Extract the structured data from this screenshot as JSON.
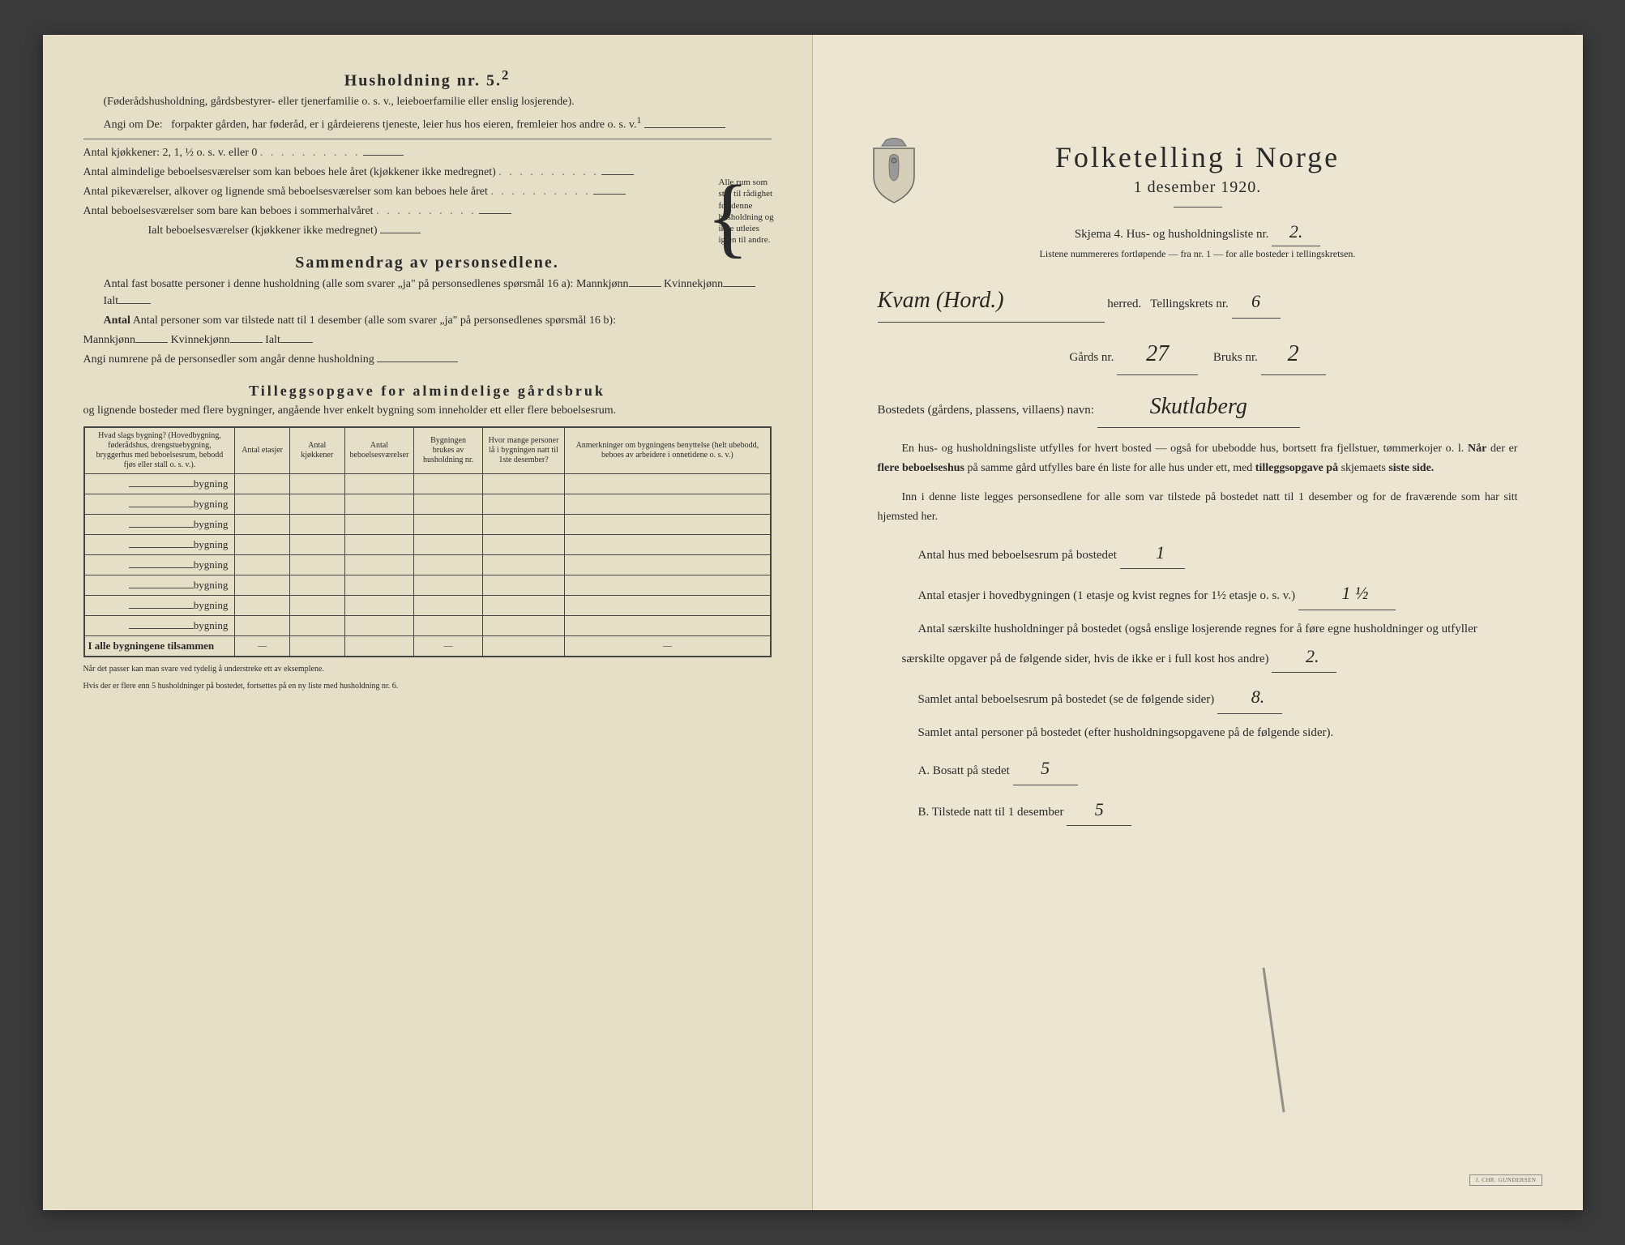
{
  "left_page": {
    "heading1": "Husholdning nr. 5.",
    "heading1_sup": "2",
    "para1": "(Føderådshusholdning, gårdsbestyrer- eller tjenerfamilie o. s. v., leieboerfamilie eller enslig losjerende).",
    "para2_prefix": "Angi om De:",
    "para2": "forpakter gården, har føderåd, er i gårdeierens tjeneste, leier hus hos eieren, fremleier hos andre o. s. v.",
    "para2_sup": "1",
    "kitchen_line": "Antal kjøkkener: 2, 1, ½ o. s. v. eller 0",
    "rooms1": "Antal almindelige beboelsesværelser som kan beboes hele året (kjøkkener ikke medregnet)",
    "rooms2": "Antal pikeværelser, alkover og lignende små beboelsesværelser som kan beboes hele året",
    "rooms3": "Antal beboelsesværelser som bare kan beboes i sommerhalvåret",
    "rooms_total": "Ialt beboelsesværelser (kjøkkener ikke medregnet)",
    "side_note": "Alle rum som står til rådighet for denne husholdning og ikke utleies igjen til andre.",
    "heading2": "Sammendrag av personsedlene.",
    "summary1_prefix": "Antal fast bosatte personer i denne husholdning (alle som svarer „ja\" på personsedlenes spørsmål 16 a):",
    "summary_mann": "Mannkjønn",
    "summary_kvinne": "Kvinnekjønn",
    "summary_ialt": "Ialt",
    "summary2_prefix": "Antal personer som var tilstede natt til 1 desember (alle som svarer „ja\" på personsedlenes spørsmål 16 b):",
    "summary3": "Angi numrene på de personsedler som angår denne husholdning",
    "heading3": "Tilleggsopgave for almindelige gårdsbruk",
    "para3": "og lignende bosteder med flere bygninger, angående hver enkelt bygning som inneholder ett eller flere beboelsesrum.",
    "table": {
      "headers": [
        "Hvad slags bygning?\n(Hovedbygning, føderådshus, drengstuebygning, bryggerhus med beboelsesrum, bebodd fjøs eller stall o. s. v.).",
        "Antal etasjer",
        "Antal kjøkkener",
        "Antal beboelsesværelser",
        "Bygningen brukes av husholdning nr.",
        "Hvor mange personer lå i bygningen natt til 1ste desember?",
        "Anmerkninger om bygningens benyttelse (helt ubebodd, beboes av arbeidere i onnetidene o. s. v.)"
      ],
      "row_label": "bygning",
      "row_count": 8,
      "footer_label": "I alle bygningene tilsammen",
      "dash": "—"
    },
    "footnote1": "Når det passer kan man svare ved tydelig å understreke ett av eksemplene.",
    "footnote2": "Hvis der er flere enn 5 husholdninger på bostedet, fortsettes på en ny liste med husholdning nr. 6."
  },
  "right_page": {
    "title": "Folketelling i Norge",
    "date": "1 desember 1920.",
    "skjema_line": "Skjema 4.  Hus- og husholdningsliste nr.",
    "skjema_value": "2.",
    "liste_note": "Listene nummereres fortløpende — fra nr. 1 — for alle bosteder i tellingskretsen.",
    "herred_value": "Kvam (Hord.)",
    "herred_label": "herred.",
    "tellingskrets_label": "Tellingskrets nr.",
    "tellingskrets_value": "6",
    "gards_label": "Gårds nr.",
    "gards_value": "27",
    "bruks_label": "Bruks nr.",
    "bruks_value": "2",
    "bosted_label": "Bostedets (gårdens, plassens, villaens) navn:",
    "bosted_value": "Skutlaberg",
    "body1": "En hus- og husholdningsliste utfylles for hvert bosted — også for ubebodde hus, bortsett fra fjellstuer, tømmerkojer o. l.  Når der er flere beboelseshus på samme gård utfylles bare én liste for alle hus under ett, med tilleggsopgave på skjemaets siste side.",
    "body2": "Inn i denne liste legges personsedlene for alle som var tilstede på bostedet natt til 1 desember og for de fraværende som har sitt hjemsted her.",
    "stat1_label": "Antal hus med beboelsesrum på bostedet",
    "stat1_value": "1",
    "stat2_label": "Antal etasjer i hovedbygningen (1 etasje og kvist regnes for 1½ etasje o. s. v.)",
    "stat2_value": "1 ½",
    "stat3": "Antal særskilte husholdninger på bostedet (også enslige losjerende regnes for å føre egne husholdninger og utfyller særskilte opgaver på de følgende sider, hvis de ikke er i full kost hos andre)",
    "stat3_value": "2.",
    "stat4_label": "Samlet antal beboelsesrum på bostedet (se de følgende sider)",
    "stat4_value": "8.",
    "stat5": "Samlet antal personer på bostedet (efter husholdningsopgavene på de følgende sider).",
    "sub_a_label": "A.  Bosatt på stedet",
    "sub_a_value": "5",
    "sub_b_label": "B.  Tilstede natt til 1 desember",
    "sub_b_value": "5",
    "stamp_text": "J. CHR. GUNDERSEN"
  }
}
